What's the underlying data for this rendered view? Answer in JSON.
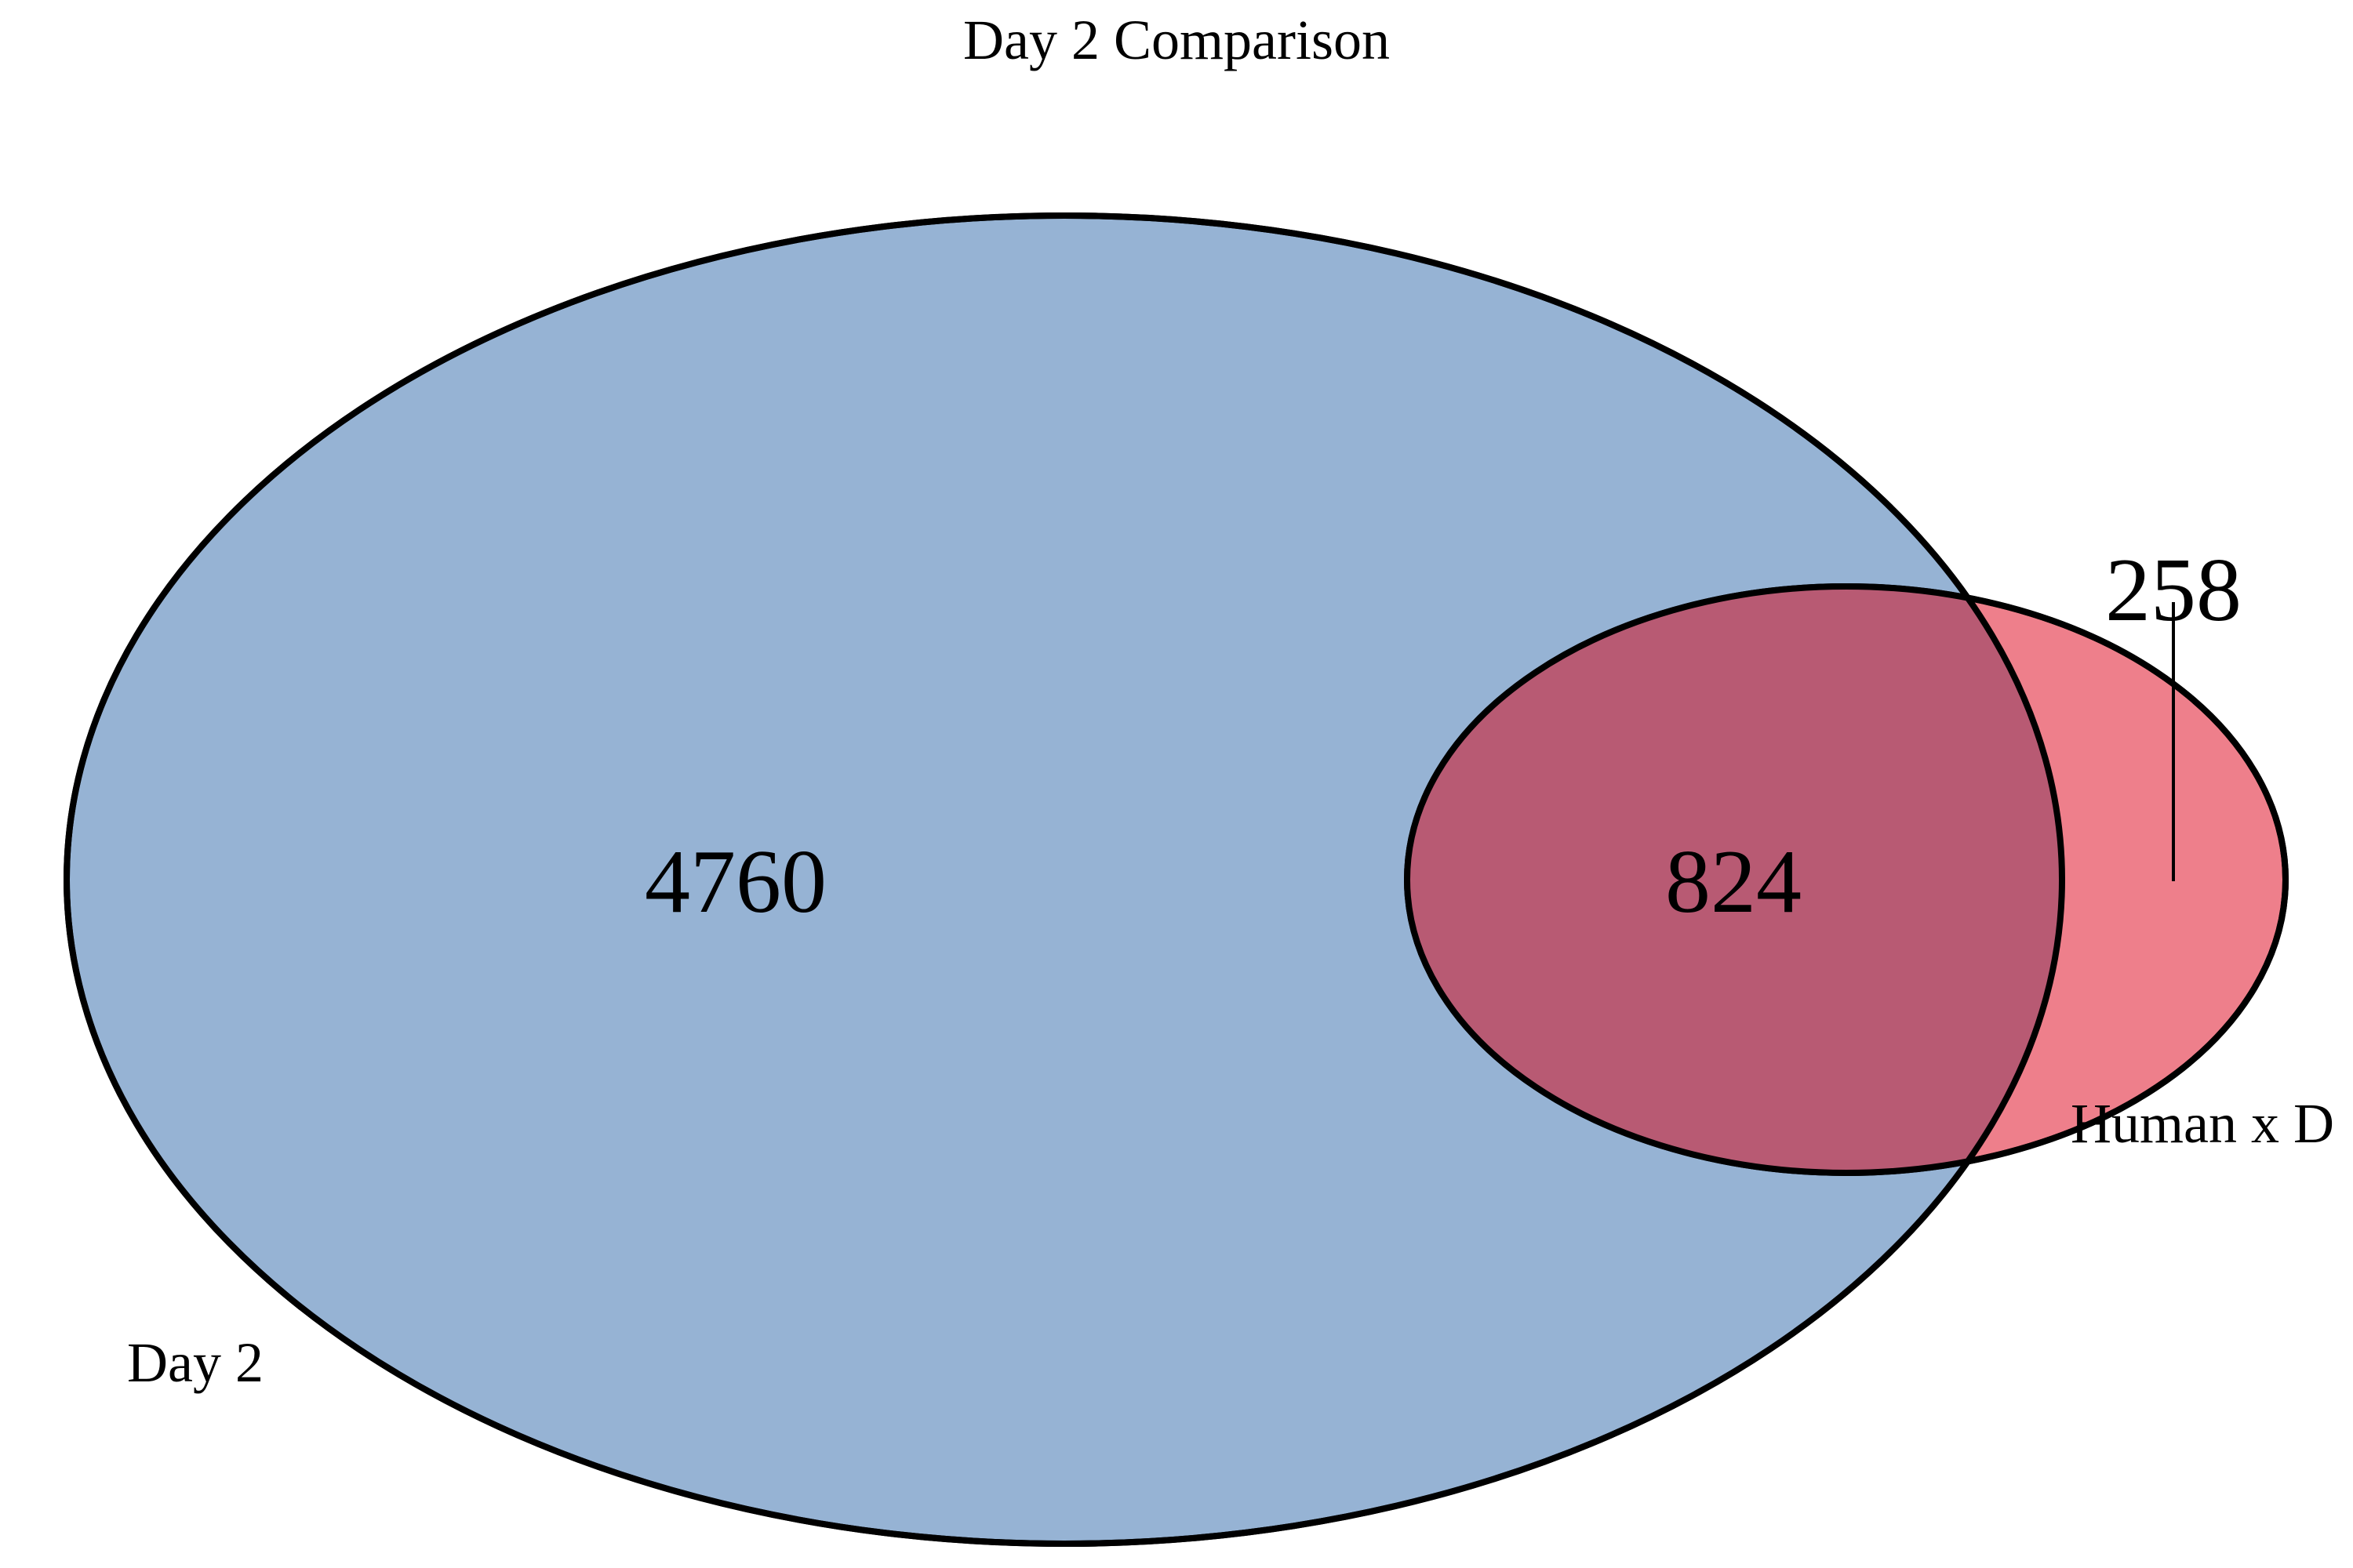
{
  "title": "Day 2 Comparison",
  "sets": [
    {
      "label": "Day 2",
      "color": "#96B3D4"
    },
    {
      "label": "Human x D",
      "color": "#EE7F8B"
    }
  ],
  "intersection_color": "#B85A73",
  "regions": {
    "day2_only": "4760",
    "overlap": "824",
    "human_only": "258"
  }
}
